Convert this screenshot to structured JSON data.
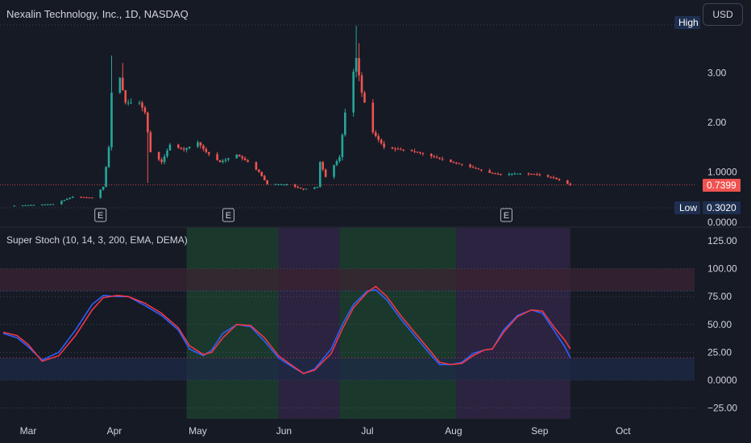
{
  "header": {
    "title": "Nexalin Technology, Inc., 1D, NASDAQ",
    "currency_button": "USD"
  },
  "indicator": {
    "title": "Super Stoch (10, 14, 3, 200, EMA, DEMA)"
  },
  "colors": {
    "up": "#26a69a",
    "down": "#ef5350",
    "stoch_k": "#2962ff",
    "stoch_d": "#f23645",
    "background": "#161a25",
    "grid_text": "#d1d4dc",
    "bull_zone": "#1b3a2c",
    "bear_zone": "#2c2440",
    "ob_zone": "#3b2330",
    "os_zone": "#1d2a45"
  },
  "chart_data": [
    {
      "type": "candlestick",
      "title": "Nexalin Technology, Inc., 1D, NASDAQ",
      "yaxis_ticks": [
        "0.0000",
        "1.0000",
        "2.00",
        "3.00"
      ],
      "ylim": [
        0,
        4.0
      ],
      "markers": {
        "high_label": "High",
        "low_label": "Low",
        "low_value": "0.3020",
        "last_price": "0.7399"
      },
      "earnings_labels": [
        "E",
        "E",
        "E"
      ],
      "price_anchors": [
        [
          "2023-02-24",
          0.32
        ],
        [
          "2023-03-10",
          0.35
        ],
        [
          "2023-03-17",
          0.5
        ],
        [
          "2023-03-24",
          0.48
        ],
        [
          "2023-03-28",
          0.7
        ],
        [
          "2023-03-30",
          1.5
        ],
        [
          "2023-03-31",
          2.6
        ],
        [
          "2023-04-03",
          2.9
        ],
        [
          "2023-04-05",
          2.4
        ],
        [
          "2023-04-10",
          2.4
        ],
        [
          "2023-04-12",
          2.2
        ],
        [
          "2023-04-14",
          1.4
        ],
        [
          "2023-04-18",
          1.2
        ],
        [
          "2023-04-21",
          1.55
        ],
        [
          "2023-04-26",
          1.45
        ],
        [
          "2023-05-01",
          1.6
        ],
        [
          "2023-05-04",
          1.4
        ],
        [
          "2023-05-09",
          1.2
        ],
        [
          "2023-05-15",
          1.35
        ],
        [
          "2023-05-19",
          1.2
        ],
        [
          "2023-05-23",
          1.0
        ],
        [
          "2023-05-26",
          0.75
        ],
        [
          "2023-06-02",
          0.75
        ],
        [
          "2023-06-08",
          0.65
        ],
        [
          "2023-06-13",
          0.7
        ],
        [
          "2023-06-14",
          1.2
        ],
        [
          "2023-06-16",
          0.9
        ],
        [
          "2023-06-21",
          1.3
        ],
        [
          "2023-06-23",
          2.2
        ],
        [
          "2023-06-27",
          3.3
        ],
        [
          "2023-06-29",
          2.6
        ],
        [
          "2023-07-03",
          1.8
        ],
        [
          "2023-07-07",
          1.5
        ],
        [
          "2023-07-13",
          1.45
        ],
        [
          "2023-07-19",
          1.4
        ],
        [
          "2023-07-25",
          1.3
        ],
        [
          "2023-07-31",
          1.2
        ],
        [
          "2023-08-04",
          1.15
        ],
        [
          "2023-08-10",
          1.05
        ],
        [
          "2023-08-14",
          0.98
        ],
        [
          "2023-08-18",
          0.95
        ],
        [
          "2023-08-25",
          0.97
        ],
        [
          "2023-08-31",
          0.95
        ],
        [
          "2023-09-06",
          0.88
        ],
        [
          "2023-09-12",
          0.74
        ]
      ]
    },
    {
      "type": "line",
      "title": "Super Stoch (10, 14, 3, 200, EMA, DEMA)",
      "yaxis_ticks": [
        "125.00",
        "100.00",
        "75.00",
        "50.00",
        "25.00",
        "0.0000",
        "−25.00"
      ],
      "ylim": [
        -32,
        132
      ],
      "bands": [
        {
          "from": 80,
          "to": 100,
          "kind": "overbought"
        },
        {
          "from": 0,
          "to": 20,
          "kind": "oversold"
        }
      ],
      "shaded_periods": [
        {
          "from": "2023-02-20",
          "to": "2023-04-27",
          "kind": "neutral"
        },
        {
          "from": "2023-04-27",
          "to": "2023-05-30",
          "kind": "bullish"
        },
        {
          "from": "2023-05-30",
          "to": "2023-06-21",
          "kind": "bearish"
        },
        {
          "from": "2023-06-21",
          "to": "2023-08-02",
          "kind": "bullish"
        },
        {
          "from": "2023-08-02",
          "to": "2023-09-12",
          "kind": "bearish"
        }
      ],
      "series": [
        {
          "values": [
            [
              "2023-02-20",
              42
            ],
            [
              "2023-02-25",
              38
            ],
            [
              "2023-03-01",
              30
            ],
            [
              "2023-03-06",
              18
            ],
            [
              "2023-03-12",
              25
            ],
            [
              "2023-03-18",
              45
            ],
            [
              "2023-03-24",
              68
            ],
            [
              "2023-03-28",
              76
            ],
            [
              "2023-04-02",
              75
            ],
            [
              "2023-04-06",
              75
            ],
            [
              "2023-04-12",
              67
            ],
            [
              "2023-04-18",
              58
            ],
            [
              "2023-04-24",
              45
            ],
            [
              "2023-04-28",
              28
            ],
            [
              "2023-05-03",
              22
            ],
            [
              "2023-05-06",
              27
            ],
            [
              "2023-05-10",
              42
            ],
            [
              "2023-05-15",
              50
            ],
            [
              "2023-05-20",
              48
            ],
            [
              "2023-05-25",
              35
            ],
            [
              "2023-05-30",
              20
            ],
            [
              "2023-06-04",
              12
            ],
            [
              "2023-06-08",
              6
            ],
            [
              "2023-06-12",
              10
            ],
            [
              "2023-06-18",
              28
            ],
            [
              "2023-06-22",
              50
            ],
            [
              "2023-06-26",
              68
            ],
            [
              "2023-07-01",
              80
            ],
            [
              "2023-07-04",
              81
            ],
            [
              "2023-07-08",
              72
            ],
            [
              "2023-07-13",
              55
            ],
            [
              "2023-07-18",
              40
            ],
            [
              "2023-07-23",
              25
            ],
            [
              "2023-07-27",
              14
            ],
            [
              "2023-07-31",
              14
            ],
            [
              "2023-08-04",
              16
            ],
            [
              "2023-08-08",
              24
            ],
            [
              "2023-08-12",
              27
            ],
            [
              "2023-08-15",
              28
            ],
            [
              "2023-08-19",
              45
            ],
            [
              "2023-08-24",
              58
            ],
            [
              "2023-08-29",
              63
            ],
            [
              "2023-09-02",
              60
            ],
            [
              "2023-09-06",
              45
            ],
            [
              "2023-09-10",
              30
            ],
            [
              "2023-09-12",
              20
            ]
          ]
        },
        {
          "values": [
            [
              "2023-02-20",
              43
            ],
            [
              "2023-02-25",
              40
            ],
            [
              "2023-03-01",
              32
            ],
            [
              "2023-03-06",
              17
            ],
            [
              "2023-03-12",
              22
            ],
            [
              "2023-03-18",
              40
            ],
            [
              "2023-03-24",
              63
            ],
            [
              "2023-03-28",
              74
            ],
            [
              "2023-04-02",
              76
            ],
            [
              "2023-04-06",
              75
            ],
            [
              "2023-04-12",
              69
            ],
            [
              "2023-04-18",
              60
            ],
            [
              "2023-04-24",
              47
            ],
            [
              "2023-04-28",
              31
            ],
            [
              "2023-05-03",
              23
            ],
            [
              "2023-05-06",
              25
            ],
            [
              "2023-05-10",
              38
            ],
            [
              "2023-05-15",
              50
            ],
            [
              "2023-05-20",
              49
            ],
            [
              "2023-05-25",
              38
            ],
            [
              "2023-05-30",
              22
            ],
            [
              "2023-06-04",
              13
            ],
            [
              "2023-06-08",
              6
            ],
            [
              "2023-06-12",
              9
            ],
            [
              "2023-06-18",
              24
            ],
            [
              "2023-06-22",
              46
            ],
            [
              "2023-06-26",
              65
            ],
            [
              "2023-07-01",
              79
            ],
            [
              "2023-07-04",
              84
            ],
            [
              "2023-07-08",
              75
            ],
            [
              "2023-07-13",
              58
            ],
            [
              "2023-07-18",
              43
            ],
            [
              "2023-07-23",
              28
            ],
            [
              "2023-07-27",
              16
            ],
            [
              "2023-07-31",
              14
            ],
            [
              "2023-08-04",
              15
            ],
            [
              "2023-08-08",
              22
            ],
            [
              "2023-08-12",
              27
            ],
            [
              "2023-08-15",
              28
            ],
            [
              "2023-08-19",
              43
            ],
            [
              "2023-08-24",
              57
            ],
            [
              "2023-08-29",
              63
            ],
            [
              "2023-09-02",
              62
            ],
            [
              "2023-09-06",
              48
            ],
            [
              "2023-09-10",
              36
            ],
            [
              "2023-09-12",
              28
            ]
          ]
        }
      ]
    }
  ],
  "xaxis": {
    "ticks": [
      {
        "date": "2023-03-01",
        "label": "Mar"
      },
      {
        "date": "2023-04-01",
        "label": "Apr"
      },
      {
        "date": "2023-05-01",
        "label": "May"
      },
      {
        "date": "2023-06-01",
        "label": "Jun"
      },
      {
        "date": "2023-07-01",
        "label": "Jul"
      },
      {
        "date": "2023-08-01",
        "label": "Aug"
      },
      {
        "date": "2023-09-01",
        "label": "Sep"
      },
      {
        "date": "2023-10-01",
        "label": "Oct"
      }
    ]
  }
}
